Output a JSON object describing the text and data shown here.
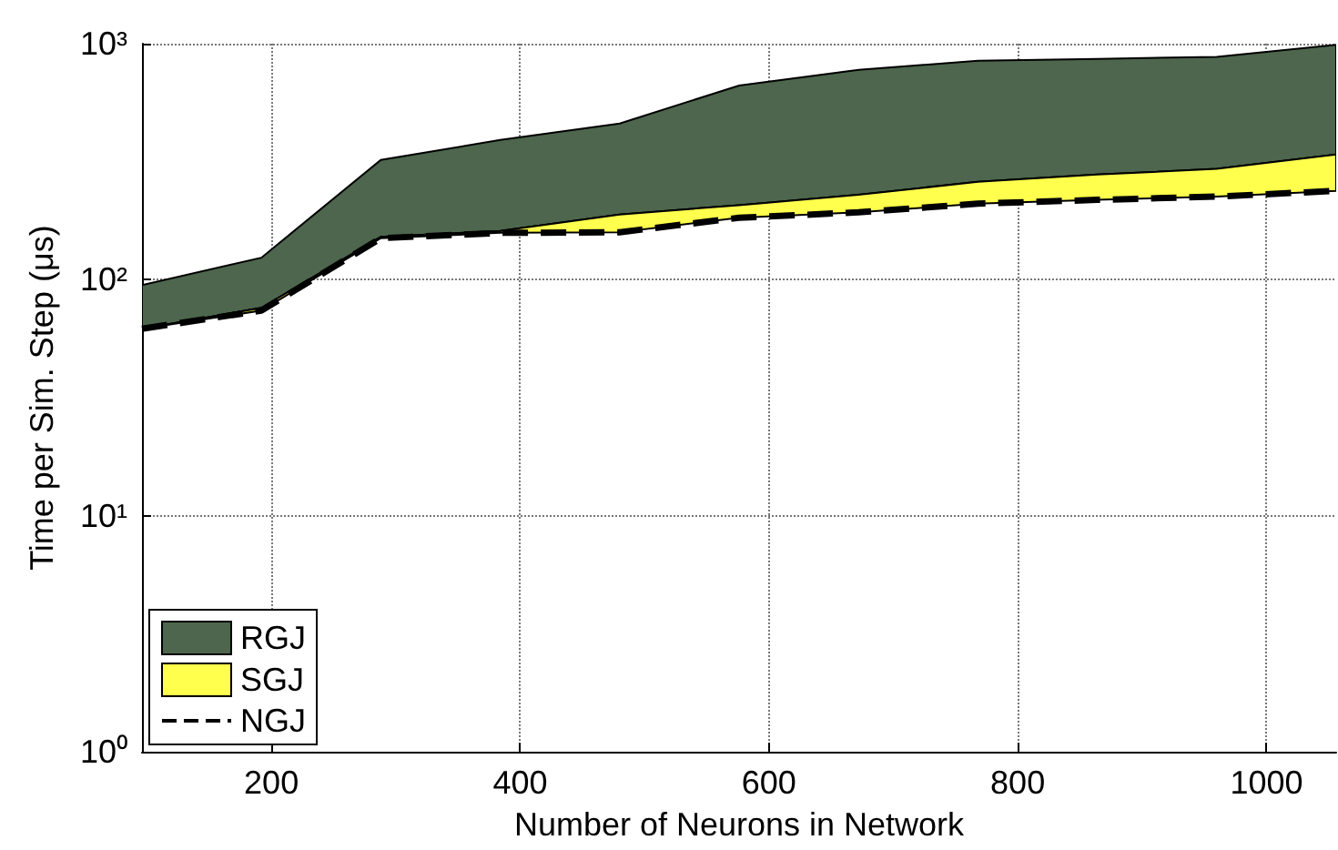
{
  "chart_data": {
    "type": "area",
    "xlabel": "Number of Neurons in Network",
    "ylabel": "Time per Sim. Step (μs)",
    "x": [
      96,
      192,
      288,
      384,
      480,
      576,
      672,
      768,
      864,
      960,
      1056
    ],
    "series": [
      {
        "name": "RGJ",
        "color": "#4d664d",
        "values": [
          95,
          124,
          322,
          391,
          459,
          665,
          775,
          847,
          862,
          880,
          990
        ]
      },
      {
        "name": "SGJ",
        "color": "#ffff4d",
        "values": [
          62,
          76,
          152,
          161,
          189,
          207,
          229,
          260,
          279,
          295,
          339
        ]
      },
      {
        "name": "NGJ",
        "type": "line",
        "color": "#000000",
        "line_style": "dashed",
        "marker": "none",
        "values": [
          62,
          74,
          150,
          158,
          159,
          183,
          193,
          210,
          218,
          225,
          238
        ]
      }
    ],
    "xlim": [
      96,
      1056
    ],
    "xticks": [
      200,
      400,
      600,
      800,
      1000
    ],
    "ylim": [
      1,
      1000
    ],
    "yticks": [
      {
        "value": 1,
        "label": "10⁰"
      },
      {
        "value": 10,
        "label": "10¹"
      },
      {
        "value": 100,
        "label": "10²"
      },
      {
        "value": 1000,
        "label": "10³"
      }
    ],
    "log": "y",
    "grid": true,
    "legend": "bottom left"
  }
}
